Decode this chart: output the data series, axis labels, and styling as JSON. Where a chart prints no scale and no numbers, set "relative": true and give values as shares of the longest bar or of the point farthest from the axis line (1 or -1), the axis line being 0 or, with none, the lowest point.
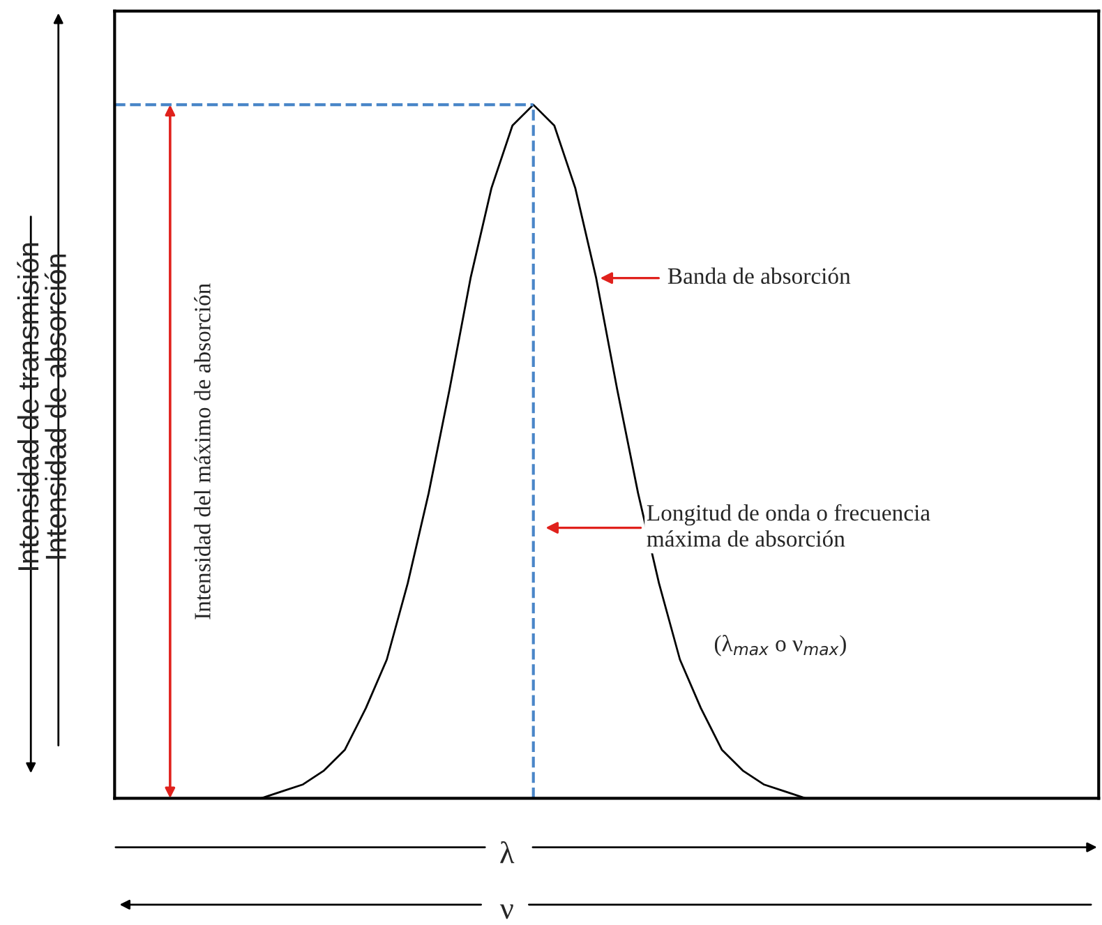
{
  "chart_data": {
    "type": "line",
    "relative": true,
    "categories": [
      null,
      null,
      null,
      null,
      null,
      null,
      null,
      null,
      null,
      null,
      null,
      null,
      null,
      null,
      null,
      null,
      null,
      null,
      null,
      null,
      null,
      null,
      null,
      null,
      null,
      null,
      null,
      null,
      null,
      null,
      null,
      null,
      null,
      null,
      null,
      null,
      null,
      null,
      null,
      null,
      null,
      null,
      null,
      null,
      null,
      null,
      null,
      null
    ],
    "legend": false,
    "marker": "none",
    "line_style": "solid",
    "series": [
      {
        "color": "#000000",
        "values": [
          0,
          0,
          0,
          0,
          0,
          0,
          0,
          0,
          0.01,
          0.02,
          0.04,
          0.07,
          0.13,
          0.2,
          0.31,
          0.44,
          0.59,
          0.75,
          0.88,
          0.97,
          1,
          0.97,
          0.88,
          0.75,
          0.59,
          0.44,
          0.31,
          0.2,
          0.13,
          0.07,
          0.04,
          0.02,
          0.01,
          0,
          0,
          0,
          0,
          0,
          0,
          0,
          0,
          0,
          0,
          0,
          0,
          0,
          0,
          0
        ]
      }
    ],
    "ylabel": "Intensidad de absorción",
    "xlabel": "λ",
    "ref_lines": [
      {
        "axis": "y",
        "value": 1,
        "color": "#4a86c8",
        "line_style": "dashed"
      }
    ],
    "annotations": [
      "Banda de absorción",
      "Longitud de onda o frecuencia\nmáxima de absorción",
      "(λ$_{max}$ o ν$_{max}$)",
      "Intensidad del máximo de absorción",
      "Intensidad de transmisión",
      "ν"
    ]
  }
}
